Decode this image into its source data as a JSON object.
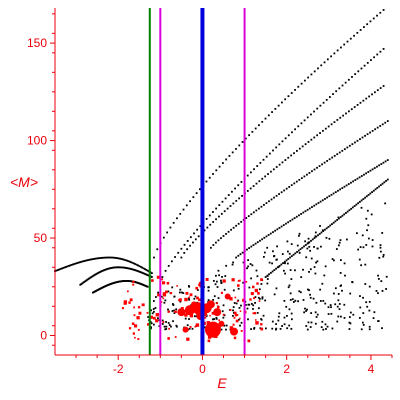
{
  "chart_data": {
    "type": "scatter",
    "title": "",
    "xlabel": "E",
    "ylabel": "<M>",
    "xlim": [
      -3.5,
      4.5
    ],
    "ylim": [
      -10,
      168
    ],
    "x_ticks": [
      -2,
      0,
      2,
      4
    ],
    "y_ticks": [
      0,
      50,
      100,
      150
    ],
    "x_tick_labels": [
      "-2",
      "0",
      "2",
      "4"
    ],
    "y_tick_labels": [
      "0",
      "50",
      "100",
      "150"
    ],
    "grid": false,
    "legend": "none",
    "colors": {
      "axes": "#e8000b",
      "black_points": "#000000",
      "red_points": "#ff0000",
      "green_line": "#008000",
      "blue_line": "#0000dd",
      "magenta_line": "#dd00dd"
    },
    "vertical_lines": [
      {
        "x": -1.25,
        "color": "green",
        "width": "thin"
      },
      {
        "x": -1.0,
        "color": "magenta",
        "width": "thin"
      },
      {
        "x": 0.0,
        "color": "blue",
        "width": "thick"
      },
      {
        "x": 1.0,
        "color": "magenta",
        "width": "thin"
      }
    ],
    "black_curves": [
      {
        "x_start": -1.15,
        "x_end": 4.3,
        "y_start": 40,
        "y_end": 167,
        "power": 0.8
      },
      {
        "x_start": -0.95,
        "x_end": 4.3,
        "y_start": 30,
        "y_end": 147,
        "power": 0.85
      },
      {
        "x_start": -0.5,
        "x_end": 4.3,
        "y_start": 40,
        "y_end": 128,
        "power": 0.85
      },
      {
        "x_start": 0.2,
        "x_end": 4.4,
        "y_start": 45,
        "y_end": 110,
        "power": 0.9
      },
      {
        "x_start": 0.8,
        "x_end": 4.4,
        "y_start": 40,
        "y_end": 90,
        "power": 0.95
      },
      {
        "x_start": 1.5,
        "x_end": 4.4,
        "y_start": 30,
        "y_end": 80,
        "power": 1.0
      },
      {
        "x_start": -3.5,
        "x_end": -1.2,
        "y_start": 33,
        "y_end": 32,
        "peak": 40,
        "peak_x": -2.2
      },
      {
        "x_start": -2.9,
        "x_end": -1.2,
        "y_start": 26,
        "y_end": 30,
        "peak": 35,
        "peak_x": -2.0
      },
      {
        "x_start": -2.6,
        "x_end": -1.3,
        "y_start": 22,
        "y_end": 25,
        "peak": 28,
        "peak_x": -1.8
      }
    ],
    "black_cloud": {
      "count": 420,
      "x_range": [
        -1.3,
        4.4
      ],
      "y_min": 3,
      "y_max_base": 20,
      "y_max_slope": 9
    },
    "red_points": [
      {
        "x": 0.25,
        "y": 3,
        "size": 8
      },
      {
        "x": -0.1,
        "y": 14,
        "size": 6
      },
      {
        "x": -0.3,
        "y": 13,
        "size": 5
      },
      {
        "x": 0.1,
        "y": 14,
        "size": 5
      },
      {
        "x": -0.5,
        "y": 12,
        "size": 4
      },
      {
        "x": 0.35,
        "y": 12,
        "size": 4
      },
      {
        "x": -0.05,
        "y": 10,
        "size": 4
      },
      {
        "x": 0.2,
        "y": 16,
        "size": 4
      },
      {
        "x": -0.2,
        "y": 16,
        "size": 3
      },
      {
        "x": 0.75,
        "y": 2,
        "size": 4
      },
      {
        "x": -0.4,
        "y": 3,
        "size": 3
      },
      {
        "x": 0.6,
        "y": 20,
        "size": 3
      },
      {
        "x": 0.45,
        "y": 6,
        "size": 3
      }
    ],
    "red_cloud": {
      "count": 130,
      "x_range": [
        -1.9,
        1.5
      ],
      "y_range": [
        -3,
        30
      ]
    }
  }
}
